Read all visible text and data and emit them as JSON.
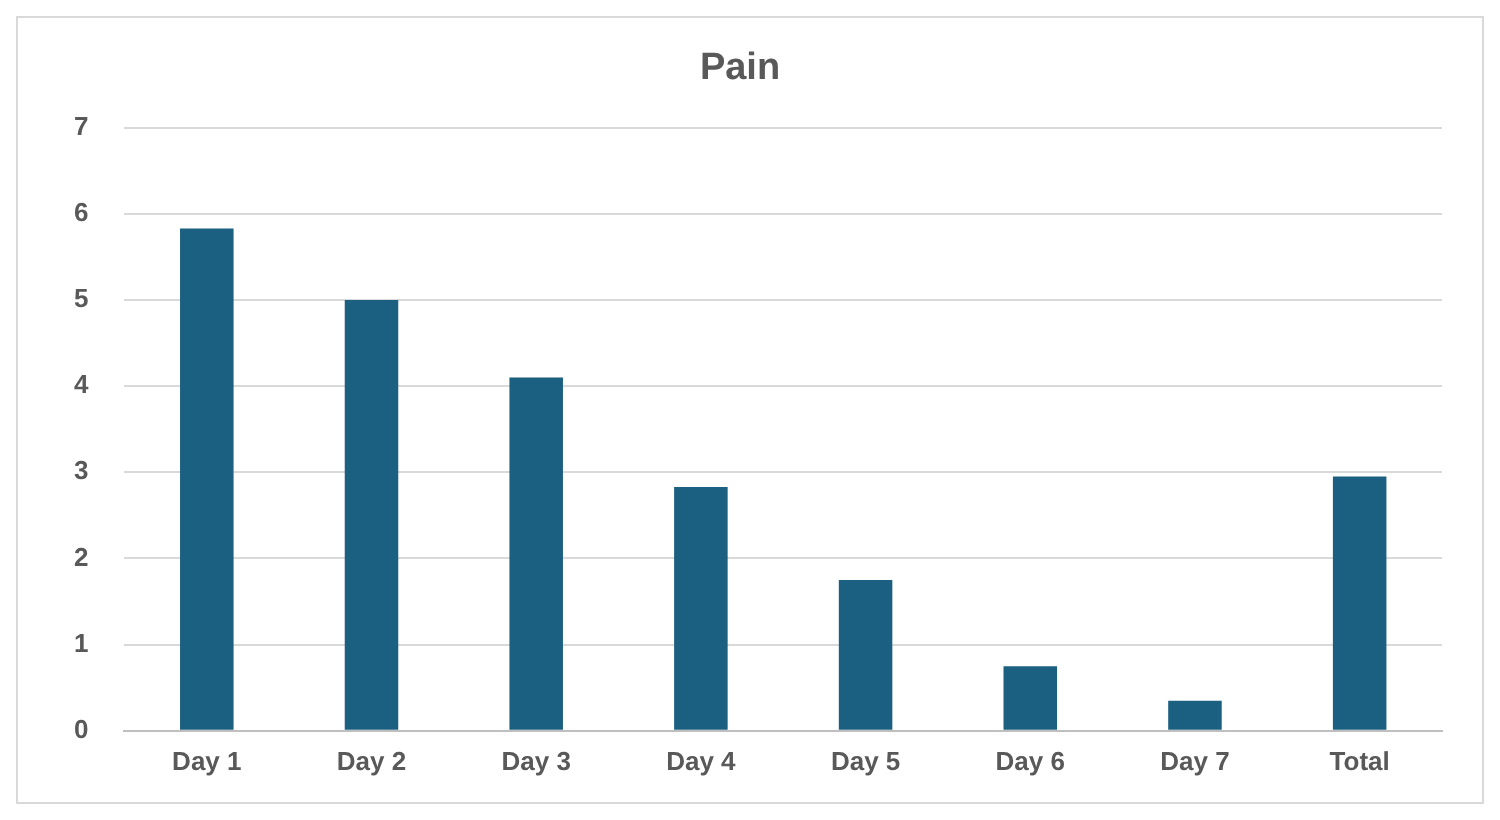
{
  "chart_data": {
    "type": "bar",
    "title": "Pain",
    "categories": [
      "Day 1",
      "Day 2",
      "Day 3",
      "Day 4",
      "Day 5",
      "Day 6",
      "Day 7",
      "Total"
    ],
    "values": [
      5.83,
      5.0,
      4.1,
      2.83,
      1.75,
      0.75,
      0.35,
      2.95
    ],
    "color": "#1b5f81",
    "ylim": [
      0,
      7
    ],
    "yticks": [
      0,
      1,
      2,
      3,
      4,
      5,
      6,
      7
    ],
    "grid": "y",
    "legend": false
  }
}
